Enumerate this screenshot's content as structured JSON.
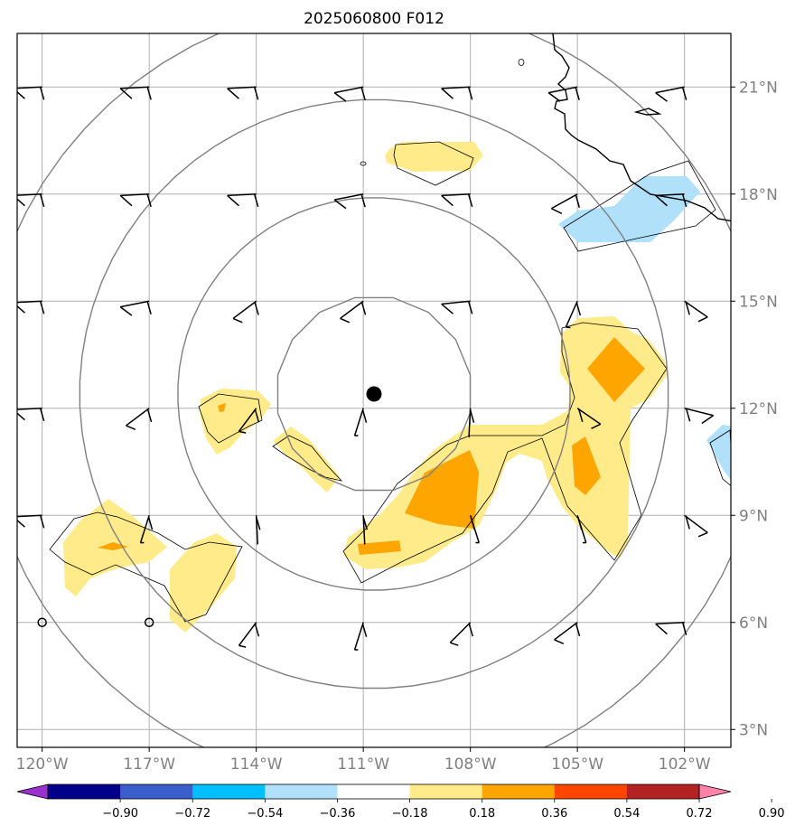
{
  "title": "2025060800 F012",
  "map": {
    "lon_range": [
      -120.7,
      -100.7
    ],
    "lat_range": [
      2.5,
      22.5
    ],
    "lon_ticks": [
      {
        "value": -120,
        "label": "120°W"
      },
      {
        "value": -117,
        "label": "117°W"
      },
      {
        "value": -114,
        "label": "114°W"
      },
      {
        "value": -111,
        "label": "111°W"
      },
      {
        "value": -108,
        "label": "108°W"
      },
      {
        "value": -105,
        "label": "105°W"
      },
      {
        "value": -102,
        "label": "102°W"
      }
    ],
    "lat_ticks": [
      {
        "value": 3,
        "label": "3°N"
      },
      {
        "value": 6,
        "label": "6°N"
      },
      {
        "value": 9,
        "label": "9°N"
      },
      {
        "value": 12,
        "label": "12°N"
      },
      {
        "value": 15,
        "label": "15°N"
      },
      {
        "value": 18,
        "label": "18°N"
      },
      {
        "value": 21,
        "label": "21°N"
      }
    ],
    "grid": true,
    "center": {
      "lon": -110.7,
      "lat": 12.4
    },
    "range_ring_radii_deg": [
      2.75,
      5.5,
      8.25,
      11.0
    ],
    "colors": {
      "grid": "#b0b0b0",
      "rings": "#808080",
      "coast": "#000000",
      "center_marker": "#000000",
      "fill_pos1": "#ffeb8a",
      "fill_pos2": "#ffa500",
      "fill_neg1": "#b0e0fa"
    },
    "wind_barbs": {
      "lons": [
        -120,
        -117,
        -114,
        -111,
        -108,
        -105,
        -102
      ],
      "lats": [
        21,
        18,
        15,
        12,
        9,
        6
      ]
    }
  },
  "colorbar": {
    "ticks": [
      "−0.90",
      "−0.72",
      "−0.54",
      "−0.36",
      "−0.18",
      "0.18",
      "0.36",
      "0.54",
      "0.72",
      "0.90"
    ],
    "colors": [
      "#9932cc",
      "#00008b",
      "#3a5fcd",
      "#00bfff",
      "#b0e0fa",
      "#ffffff",
      "#ffeb8a",
      "#ffa500",
      "#ff4500",
      "#b22222",
      "#ff82ab"
    ],
    "extend": "both"
  }
}
